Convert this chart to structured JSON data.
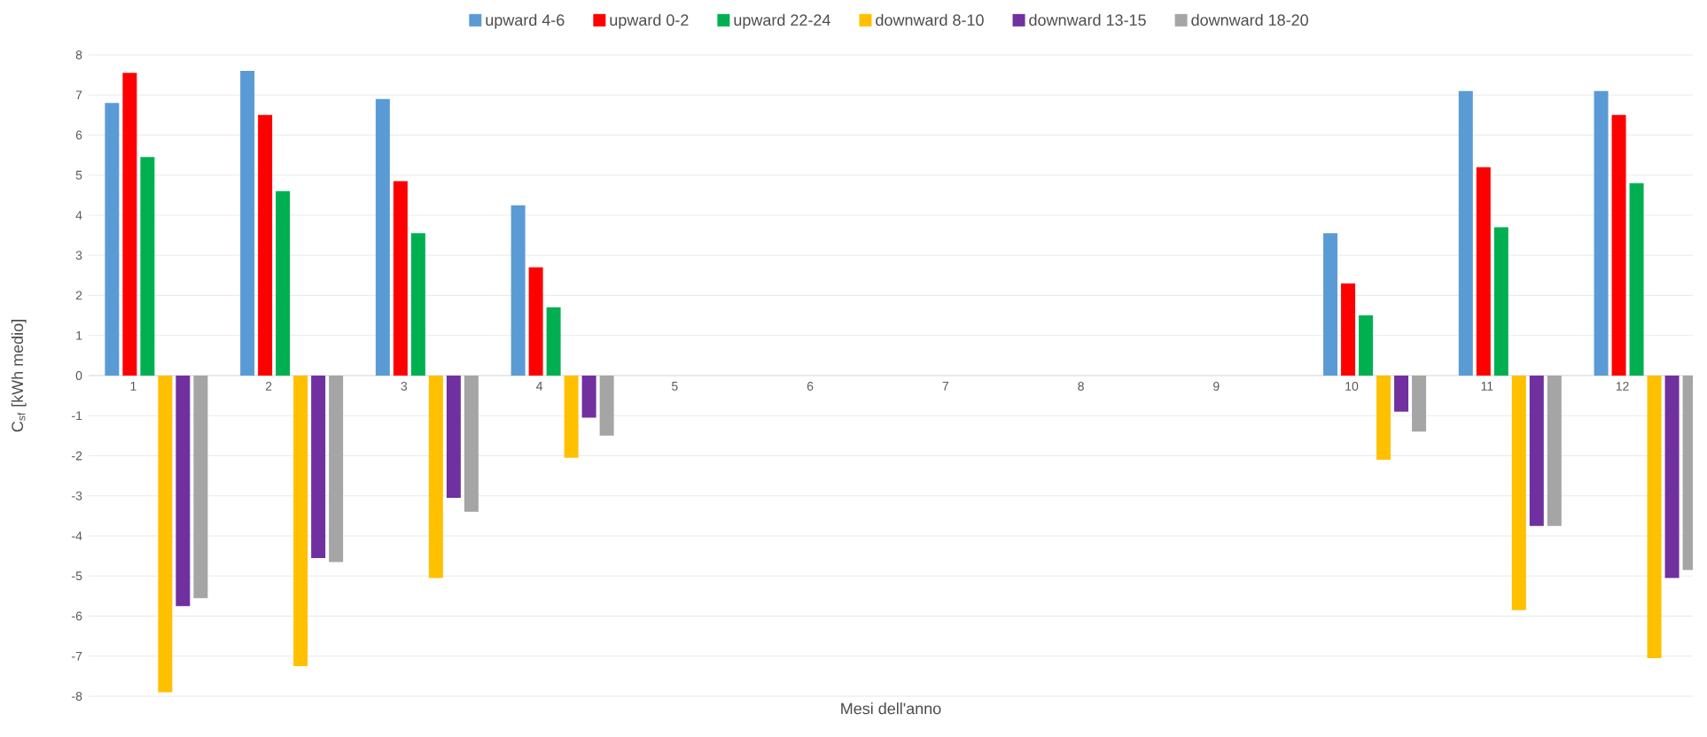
{
  "chart_data": {
    "type": "bar",
    "xlabel": "Mesi dell'anno",
    "ylabel": "C$_{sf}$ [kWh medio]",
    "categories": [
      "1",
      "2",
      "3",
      "4",
      "5",
      "6",
      "7",
      "8",
      "9",
      "10",
      "11",
      "12"
    ],
    "series": [
      {
        "name": "upward 4-6",
        "color": "#5b9bd5",
        "values": [
          6.8,
          7.6,
          6.9,
          4.25,
          null,
          null,
          null,
          null,
          null,
          3.55,
          7.1,
          7.1
        ]
      },
      {
        "name": "upward 0-2",
        "color": "#ff0000",
        "values": [
          7.55,
          6.5,
          4.85,
          2.7,
          null,
          null,
          null,
          null,
          null,
          2.3,
          5.2,
          6.5
        ]
      },
      {
        "name": "upward 22-24",
        "color": "#00b050",
        "values": [
          5.45,
          4.6,
          3.55,
          1.7,
          null,
          null,
          null,
          null,
          null,
          1.5,
          3.7,
          4.8
        ]
      },
      {
        "name": "downward 8-10",
        "color": "#ffc000",
        "values": [
          -7.9,
          -7.25,
          -5.05,
          -2.05,
          null,
          null,
          null,
          null,
          null,
          -2.1,
          -5.85,
          -7.05
        ]
      },
      {
        "name": "downward 13-15",
        "color": "#7030a0",
        "values": [
          -5.75,
          -4.55,
          -3.05,
          -1.05,
          null,
          null,
          null,
          null,
          null,
          -0.9,
          -3.75,
          -5.05
        ]
      },
      {
        "name": "downward 18-20",
        "color": "#a5a5a5",
        "values": [
          -5.55,
          -4.65,
          -3.4,
          -1.5,
          null,
          null,
          null,
          null,
          null,
          -1.4,
          -3.75,
          -4.85
        ]
      }
    ],
    "ylim": [
      -8,
      8
    ],
    "yticks": [
      -8,
      -7,
      -6,
      -5,
      -4,
      -3,
      -2,
      -1,
      0,
      1,
      2,
      3,
      4,
      5,
      6,
      7,
      8
    ],
    "grid": "y",
    "legend": "top"
  }
}
